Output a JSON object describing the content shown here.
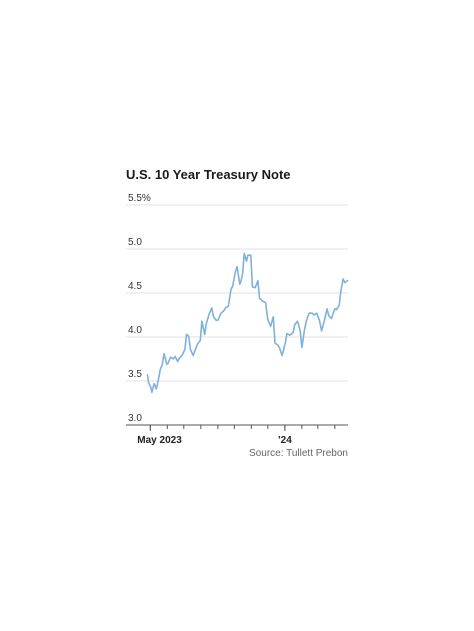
{
  "chart_data": {
    "type": "line",
    "title": "U.S. 10 Year Treasury Note",
    "source": "Source: Tullett Prebon",
    "y_tick_labels": [
      "5.5%",
      "5.0",
      "4.5",
      "4.0",
      "3.5",
      "3.0"
    ],
    "y_ticks": [
      5.5,
      5.0,
      4.5,
      4.0,
      3.5,
      3.0
    ],
    "ylim": [
      3.0,
      5.5
    ],
    "x_range": [
      "2023-04-25",
      "2024-04-25"
    ],
    "x_tick_labels": [
      {
        "date": "2023-05-01",
        "label": "May 2023"
      },
      {
        "date": "2024-01-01",
        "label": "’24"
      }
    ],
    "x_minor_ticks": [
      "2023-05-01",
      "2023-06-01",
      "2023-07-01",
      "2023-08-01",
      "2023-09-01",
      "2023-10-01",
      "2023-11-01",
      "2023-12-01",
      "2024-01-01",
      "2024-02-01",
      "2024-03-01",
      "2024-04-01"
    ],
    "grid": "horizontal",
    "line_color": "#7fb1dc",
    "series": [
      {
        "name": "",
        "x": [
          "2023-04-26",
          "2023-04-28",
          "2023-05-02",
          "2023-05-04",
          "2023-05-08",
          "2023-05-10",
          "2023-05-12",
          "2023-05-16",
          "2023-05-19",
          "2023-05-23",
          "2023-05-26",
          "2023-05-31",
          "2023-06-02",
          "2023-06-07",
          "2023-06-12",
          "2023-06-15",
          "2023-06-20",
          "2023-06-23",
          "2023-06-28",
          "2023-07-03",
          "2023-07-06",
          "2023-07-10",
          "2023-07-13",
          "2023-07-18",
          "2023-07-21",
          "2023-07-26",
          "2023-07-31",
          "2023-08-03",
          "2023-08-08",
          "2023-08-11",
          "2023-08-16",
          "2023-08-21",
          "2023-08-24",
          "2023-08-29",
          "2023-09-01",
          "2023-09-07",
          "2023-09-12",
          "2023-09-15",
          "2023-09-20",
          "2023-09-25",
          "2023-09-28",
          "2023-10-03",
          "2023-10-06",
          "2023-10-11",
          "2023-10-13",
          "2023-10-16",
          "2023-10-19",
          "2023-10-23",
          "2023-10-26",
          "2023-10-31",
          "2023-11-03",
          "2023-11-08",
          "2023-11-13",
          "2023-11-16",
          "2023-11-21",
          "2023-11-27",
          "2023-12-01",
          "2023-12-06",
          "2023-12-11",
          "2023-12-14",
          "2023-12-19",
          "2023-12-22",
          "2023-12-27",
          "2024-01-02",
          "2024-01-05",
          "2024-01-10",
          "2024-01-16",
          "2024-01-19",
          "2024-01-24",
          "2024-01-29",
          "2024-02-01",
          "2024-02-06",
          "2024-02-09",
          "2024-02-14",
          "2024-02-20",
          "2024-02-23",
          "2024-02-28",
          "2024-03-04",
          "2024-03-08",
          "2024-03-13",
          "2024-03-18",
          "2024-03-21",
          "2024-03-26",
          "2024-04-01",
          "2024-04-04",
          "2024-04-09",
          "2024-04-12",
          "2024-04-16",
          "2024-04-19",
          "2024-04-24"
        ],
        "values": [
          3.57,
          3.48,
          3.43,
          3.37,
          3.47,
          3.44,
          3.41,
          3.52,
          3.63,
          3.69,
          3.81,
          3.69,
          3.7,
          3.77,
          3.75,
          3.78,
          3.72,
          3.76,
          3.79,
          3.86,
          4.03,
          4.01,
          3.86,
          3.79,
          3.84,
          3.92,
          3.96,
          4.18,
          4.03,
          4.15,
          4.26,
          4.33,
          4.23,
          4.19,
          4.19,
          4.27,
          4.3,
          4.33,
          4.35,
          4.54,
          4.58,
          4.74,
          4.8,
          4.6,
          4.63,
          4.72,
          4.95,
          4.86,
          4.93,
          4.93,
          4.57,
          4.56,
          4.64,
          4.44,
          4.41,
          4.39,
          4.2,
          4.12,
          4.23,
          3.93,
          3.91,
          3.88,
          3.79,
          3.94,
          4.04,
          4.02,
          4.05,
          4.14,
          4.18,
          4.07,
          3.88,
          4.09,
          4.18,
          4.27,
          4.27,
          4.25,
          4.27,
          4.19,
          4.07,
          4.19,
          4.32,
          4.24,
          4.21,
          4.32,
          4.31,
          4.36,
          4.52,
          4.66,
          4.62,
          4.64
        ]
      }
    ]
  }
}
